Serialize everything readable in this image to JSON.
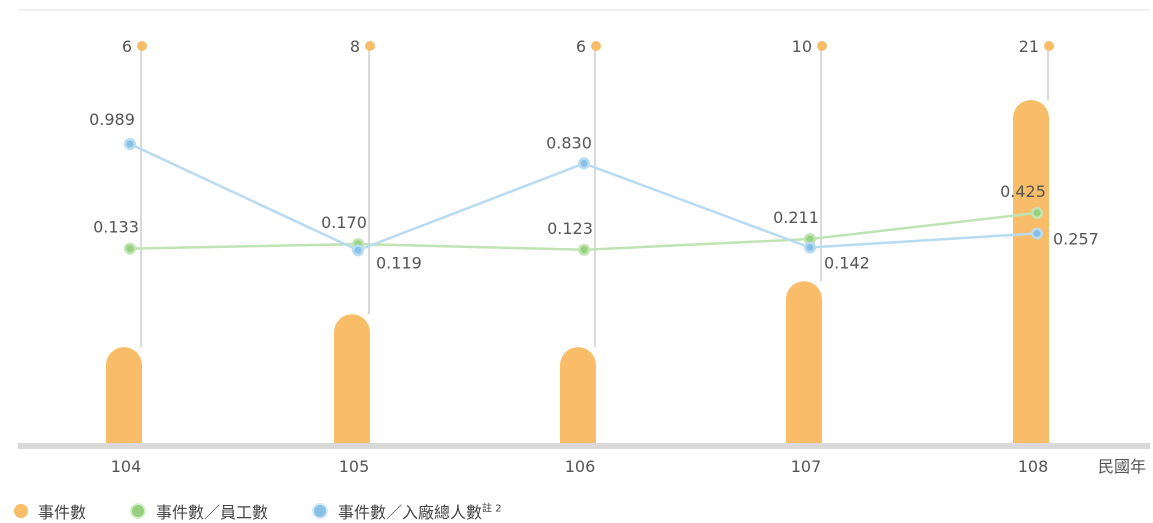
{
  "chart_data": {
    "type": "bar+line",
    "categories": [
      "104",
      "105",
      "106",
      "107",
      "108"
    ],
    "x_unit_label": "民國年",
    "series": [
      {
        "name": "事件數",
        "kind": "bar",
        "color": "#f9bd69",
        "values": [
          6,
          8,
          6,
          10,
          21
        ],
        "labels": [
          "6",
          "8",
          "6",
          "10",
          "21"
        ]
      },
      {
        "name": "事件數／員工數",
        "kind": "line",
        "color": "#bfe3b3",
        "marker_color": "#97d17e",
        "values": [
          0.133,
          0.17,
          0.123,
          0.211,
          0.425
        ],
        "labels": [
          "0.133",
          "0.170",
          "0.123",
          "0.211",
          "0.425"
        ]
      },
      {
        "name": "事件數／入廠總人數",
        "name_sup": "註 2",
        "kind": "line",
        "color": "#b9dbf0",
        "marker_color": "#86c1e8",
        "values": [
          0.989,
          0.119,
          0.83,
          0.142,
          0.257
        ],
        "labels": [
          "0.989",
          "0.119",
          "0.830",
          "0.142",
          "0.257"
        ]
      }
    ],
    "legend_position": "bottom-left",
    "grid": false
  }
}
